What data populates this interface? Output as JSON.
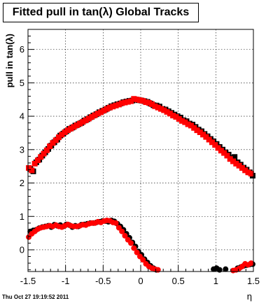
{
  "title": "Fitted pull in tan(λ)  Global Tracks",
  "footer": {
    "timestamp": "Thu Oct 27 19:19:52 2011"
  },
  "chart_data": {
    "type": "scatter",
    "title": "Fitted pull in tan(λ)  Global Tracks",
    "xlabel": "η",
    "ylabel": "pull in tan(λ)",
    "xlim": [
      -1.5,
      1.5
    ],
    "ylim": [
      -0.65,
      6.6
    ],
    "xticks": [
      -1.5,
      -1,
      -0.5,
      0,
      0.5,
      1,
      1.5
    ],
    "xtick_labels": [
      "-1.5",
      "-1",
      "-0.5",
      "0",
      "0.5",
      "1",
      "1.5"
    ],
    "yticks": [
      0,
      1,
      2,
      3,
      4,
      5,
      6
    ],
    "ytick_labels": [
      "0",
      "1",
      "2",
      "3",
      "4",
      "5",
      "6"
    ],
    "grid": true,
    "colors": {
      "series_a": "#000000",
      "series_b": "#ff0000",
      "grid": "#000000"
    },
    "series": [
      {
        "marker": "square",
        "color": "#000000",
        "group": "upper",
        "x": [
          -1.47,
          -1.43,
          -1.39,
          -1.35,
          -1.31,
          -1.27,
          -1.23,
          -1.19,
          -1.15,
          -1.11,
          -1.07,
          -1.03,
          -0.99,
          -0.95,
          -0.91,
          -0.87,
          -0.83,
          -0.79,
          -0.75,
          -0.71,
          -0.67,
          -0.63,
          -0.59,
          -0.55,
          -0.51,
          -0.47,
          -0.43,
          -0.39,
          -0.35,
          -0.31,
          -0.27,
          -0.23,
          -0.19,
          -0.15,
          -0.11,
          -0.07,
          -0.03,
          0.01,
          0.05,
          0.09,
          0.13,
          0.17,
          0.21,
          0.25,
          0.29,
          0.33,
          0.37,
          0.41,
          0.45,
          0.49,
          0.53,
          0.57,
          0.61,
          0.65,
          0.69,
          0.73,
          0.77,
          0.81,
          0.85,
          0.89,
          0.93,
          0.97,
          1.01,
          1.05,
          1.09,
          1.13,
          1.17,
          1.21,
          1.25,
          1.29,
          1.33,
          1.37,
          1.41,
          1.45,
          1.49
        ],
        "y": [
          2.42,
          2.35,
          2.62,
          2.7,
          2.82,
          2.92,
          3.02,
          3.12,
          3.22,
          3.3,
          3.42,
          3.48,
          3.55,
          3.62,
          3.66,
          3.72,
          3.76,
          3.8,
          3.87,
          3.91,
          3.97,
          4.02,
          4.06,
          4.12,
          4.16,
          4.2,
          4.25,
          4.3,
          4.33,
          4.36,
          4.38,
          4.42,
          4.44,
          4.46,
          4.47,
          4.5,
          4.48,
          4.47,
          4.45,
          4.43,
          4.38,
          4.33,
          4.32,
          4.29,
          4.22,
          4.2,
          4.15,
          4.1,
          4.05,
          4.0,
          3.96,
          3.88,
          3.85,
          3.78,
          3.75,
          3.68,
          3.6,
          3.55,
          3.47,
          3.4,
          3.32,
          3.25,
          3.17,
          3.08,
          3.0,
          2.92,
          2.85,
          2.75,
          2.78,
          2.62,
          2.55,
          2.46,
          2.4,
          2.32,
          2.22
        ]
      },
      {
        "marker": "square",
        "color": "#ff0000",
        "group": "upper",
        "x": [
          -1.49,
          -1.45,
          -1.41,
          -1.37,
          -1.33,
          -1.29,
          -1.25,
          -1.21,
          -1.17,
          -1.13,
          -1.09,
          -1.05,
          -1.01,
          -0.97,
          -0.93,
          -0.89,
          -0.85,
          -0.81,
          -0.77,
          -0.73,
          -0.69,
          -0.65,
          -0.61,
          -0.57,
          -0.53,
          -0.49,
          -0.45,
          -0.41,
          -0.37,
          -0.33,
          -0.29,
          -0.25,
          -0.21,
          -0.17,
          -0.13,
          -0.09,
          -0.05,
          -0.01,
          0.03,
          0.07,
          0.11,
          0.15,
          0.19,
          0.23,
          0.27,
          0.31,
          0.35,
          0.39,
          0.43,
          0.47,
          0.51,
          0.55,
          0.59,
          0.63,
          0.67,
          0.71,
          0.75,
          0.79,
          0.83,
          0.87,
          0.91,
          0.95,
          0.99,
          1.03,
          1.07,
          1.11,
          1.15,
          1.19,
          1.23,
          1.27,
          1.31,
          1.35,
          1.39,
          1.43,
          1.47
        ],
        "y": [
          2.45,
          2.38,
          2.58,
          2.68,
          2.78,
          2.88,
          2.98,
          3.1,
          3.2,
          3.28,
          3.37,
          3.45,
          3.52,
          3.58,
          3.63,
          3.68,
          3.73,
          3.78,
          3.83,
          3.88,
          3.93,
          3.98,
          4.03,
          4.08,
          4.12,
          4.17,
          4.22,
          4.26,
          4.29,
          4.32,
          4.35,
          4.39,
          4.41,
          4.43,
          4.45,
          4.52,
          4.5,
          4.48,
          4.46,
          4.42,
          4.4,
          4.36,
          4.3,
          4.26,
          4.22,
          4.18,
          4.13,
          4.08,
          4.02,
          3.98,
          3.92,
          3.86,
          3.82,
          3.76,
          3.72,
          3.65,
          3.58,
          3.52,
          3.45,
          3.38,
          3.3,
          3.22,
          3.14,
          3.05,
          2.97,
          2.9,
          2.82,
          2.72,
          2.65,
          2.58,
          2.52,
          2.45,
          2.38,
          2.32,
          2.28
        ]
      },
      {
        "marker": "circle",
        "color": "#000000",
        "group": "lower",
        "x": [
          -1.47,
          -1.43,
          -1.39,
          -1.35,
          -1.31,
          -1.27,
          -1.23,
          -1.19,
          -1.15,
          -1.11,
          -1.07,
          -1.03,
          -0.99,
          -0.95,
          -0.91,
          -0.87,
          -0.83,
          -0.79,
          -0.75,
          -0.71,
          -0.67,
          -0.63,
          -0.59,
          -0.55,
          -0.51,
          -0.47,
          -0.43,
          -0.39,
          -0.35,
          -0.31,
          -0.27,
          -0.23,
          -0.19,
          -0.15,
          -0.11,
          -0.07,
          -0.03,
          0.01,
          0.05,
          0.09,
          0.13,
          0.17,
          0.21,
          0.97,
          1.01,
          1.05,
          1.13,
          1.29,
          1.33,
          1.37,
          1.41,
          1.45,
          1.49
        ],
        "y": [
          0.55,
          0.58,
          0.6,
          0.65,
          0.68,
          0.7,
          0.72,
          0.68,
          0.75,
          0.72,
          0.74,
          0.7,
          0.76,
          0.74,
          0.68,
          0.72,
          0.7,
          0.75,
          0.76,
          0.78,
          0.8,
          0.8,
          0.82,
          0.84,
          0.86,
          0.86,
          0.84,
          0.88,
          0.85,
          0.78,
          0.7,
          0.6,
          0.48,
          0.36,
          0.22,
          0.1,
          -0.05,
          -0.15,
          -0.28,
          -0.38,
          -0.48,
          -0.55,
          -0.6,
          -0.58,
          -0.55,
          -0.6,
          -0.58,
          -0.55,
          -0.52,
          -0.48,
          -0.46,
          -0.44,
          -0.43
        ]
      },
      {
        "marker": "circle",
        "color": "#ff0000",
        "group": "lower",
        "x": [
          -1.49,
          -1.45,
          -1.41,
          -1.37,
          -1.33,
          -1.29,
          -1.25,
          -1.21,
          -1.17,
          -1.13,
          -1.09,
          -1.05,
          -1.01,
          -0.97,
          -0.93,
          -0.89,
          -0.85,
          -0.81,
          -0.77,
          -0.73,
          -0.69,
          -0.65,
          -0.61,
          -0.57,
          -0.53,
          -0.49,
          -0.45,
          -0.41,
          -0.37,
          -0.33,
          -0.29,
          -0.25,
          -0.21,
          -0.17,
          -0.13,
          -0.09,
          -0.05,
          -0.01,
          0.03,
          0.07,
          0.11,
          0.15,
          0.19,
          0.23,
          1.23,
          1.27,
          1.31,
          1.35,
          1.39,
          1.43,
          1.47
        ],
        "y": [
          0.38,
          0.48,
          0.55,
          0.62,
          0.66,
          0.68,
          0.7,
          0.72,
          0.7,
          0.74,
          0.7,
          0.68,
          0.72,
          0.76,
          0.72,
          0.7,
          0.7,
          0.72,
          0.75,
          0.74,
          0.78,
          0.8,
          0.8,
          0.84,
          0.82,
          0.86,
          0.88,
          0.87,
          0.82,
          0.8,
          0.66,
          0.55,
          0.42,
          0.3,
          0.2,
          0.05,
          -0.08,
          -0.2,
          -0.3,
          -0.42,
          -0.5,
          -0.55,
          -0.58,
          -0.6,
          -0.62,
          -0.6,
          -0.56,
          -0.5,
          -0.42,
          -0.45,
          -0.4
        ]
      }
    ]
  }
}
